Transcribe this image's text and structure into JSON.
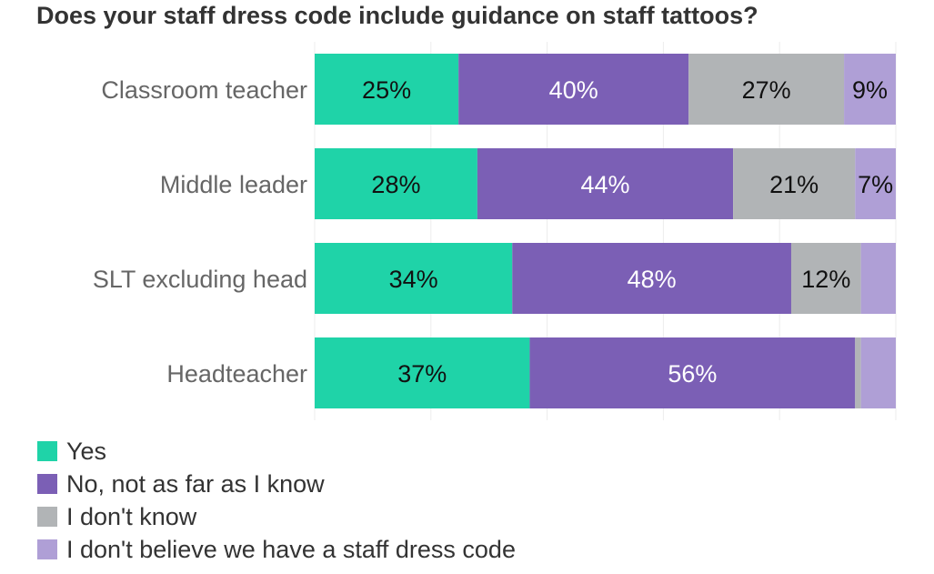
{
  "chart_data": {
    "type": "bar",
    "orientation": "horizontal",
    "stacked": true,
    "title": "Does your staff dress code include guidance on staff tattoos?",
    "categories": [
      "Classroom teacher",
      "Middle leader",
      "SLT excluding head",
      "Headteacher"
    ],
    "series": [
      {
        "name": "Yes",
        "color": "#1fd3a8",
        "values": [
          25,
          28,
          34,
          37
        ],
        "labels": [
          "25%",
          "28%",
          "34%",
          "37%"
        ],
        "label_color": "#111111"
      },
      {
        "name": "No, not as far as I know",
        "color": "#7b5fb5",
        "values": [
          40,
          44,
          48,
          56
        ],
        "labels": [
          "40%",
          "44%",
          "48%",
          "56%"
        ],
        "label_color": "#ffffff"
      },
      {
        "name": "I don't know",
        "color": "#b1b4b6",
        "values": [
          27,
          21,
          12,
          1
        ],
        "labels": [
          "27%",
          "21%",
          "12%",
          ""
        ],
        "label_color": "#111111"
      },
      {
        "name": "I don't believe we have a staff dress code",
        "color": "#af9fd6",
        "values": [
          9,
          7,
          6,
          6
        ],
        "labels": [
          "9%",
          "7%",
          "",
          ""
        ],
        "label_color": "#111111"
      }
    ],
    "xlim": [
      0,
      100
    ],
    "grid": true,
    "legend_position": "bottom-left"
  }
}
